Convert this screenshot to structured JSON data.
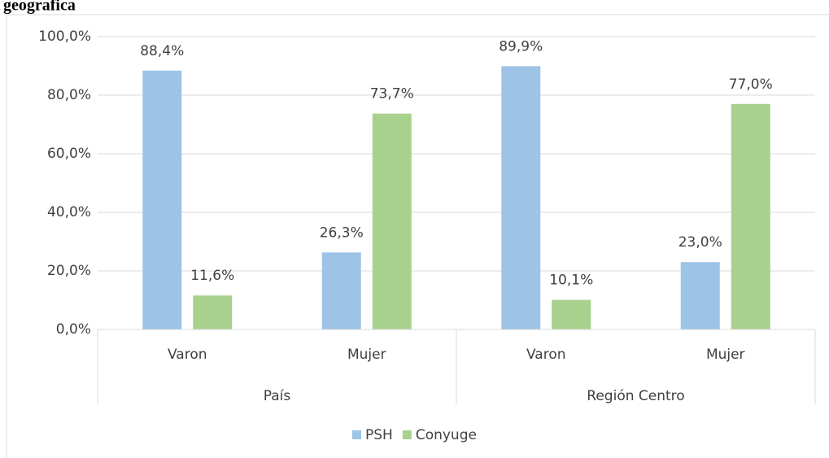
{
  "chart_data": {
    "type": "bar",
    "title": "geografica",
    "groups": [
      {
        "name": "País",
        "categories": [
          "Varon",
          "Mujer"
        ]
      },
      {
        "name": "Región Centro",
        "categories": [
          "Varon",
          "Mujer"
        ]
      }
    ],
    "series": [
      {
        "name": "PSH",
        "color": "#9dc3e6",
        "values": [
          88.4,
          26.3,
          89.9,
          23.0
        ],
        "value_labels": [
          "88,4%",
          "26,3%",
          "89,9%",
          "23,0%"
        ]
      },
      {
        "name": "Conyuge",
        "color": "#a9d18e",
        "values": [
          11.6,
          73.7,
          10.1,
          77.0
        ],
        "value_labels": [
          "11,6%",
          "73,7%",
          "10,1%",
          "77,0%"
        ]
      }
    ],
    "ylim": [
      0,
      100
    ],
    "yticks": [
      {
        "value": 0,
        "label": "0,0%"
      },
      {
        "value": 20,
        "label": "20,0%"
      },
      {
        "value": 40,
        "label": "40,0%"
      },
      {
        "value": 60,
        "label": "60,0%"
      },
      {
        "value": 80,
        "label": "80,0%"
      },
      {
        "value": 100,
        "label": "100,0%"
      }
    ],
    "grid": true,
    "legend": "bottom"
  }
}
